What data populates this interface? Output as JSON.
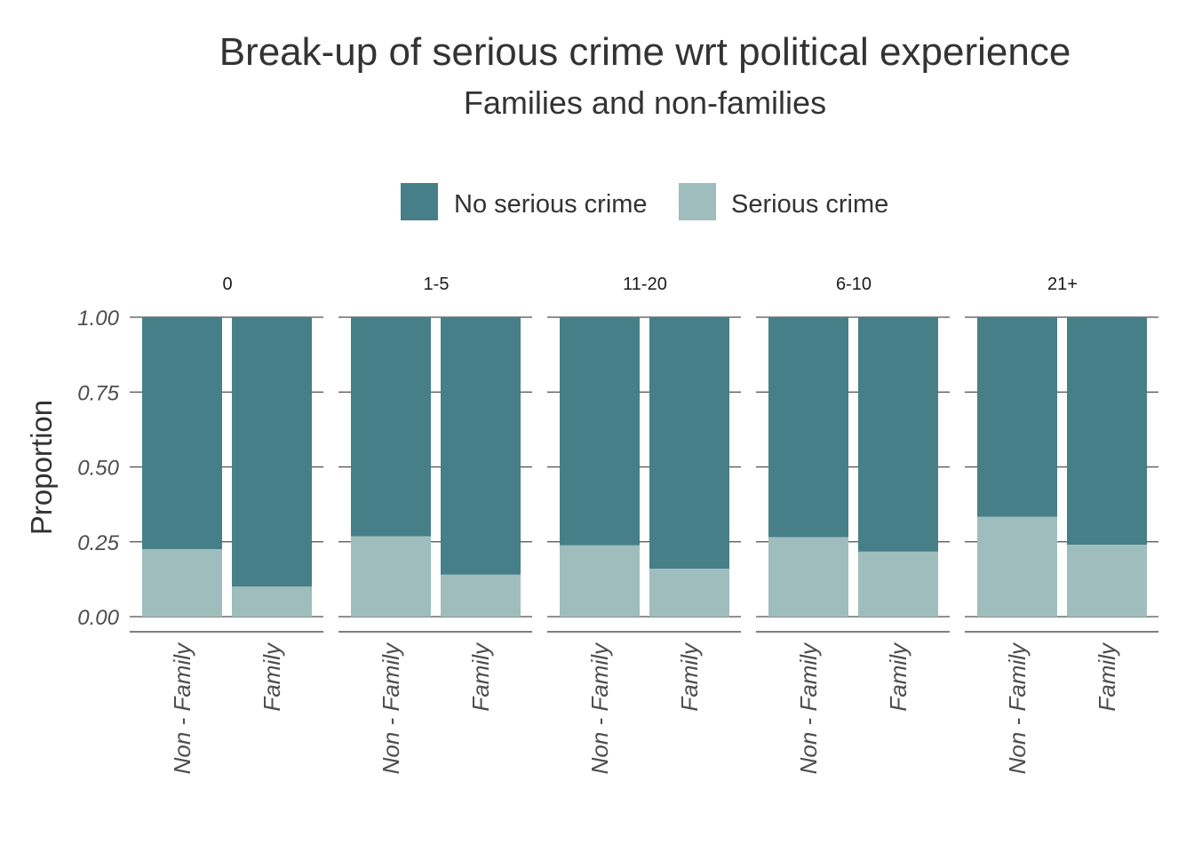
{
  "chart_data": {
    "type": "bar",
    "stacked": "proportion",
    "title": "Break-up of serious crime wrt political experience",
    "subtitle": "Families and non-families",
    "ylabel": "Proportion",
    "xlabel": "",
    "ylim": [
      0,
      1
    ],
    "yticks": [
      "0.00",
      "0.25",
      "0.50",
      "0.75",
      "1.00"
    ],
    "legend": {
      "position": "top",
      "items": [
        {
          "name": "No serious crime",
          "color": "#467f87"
        },
        {
          "name": "Serious crime",
          "color": "#9fbdbd"
        }
      ]
    },
    "categories": [
      "Non - Family",
      "Family"
    ],
    "facets": [
      {
        "label": "0",
        "serious_crime": [
          0.225,
          0.1
        ]
      },
      {
        "label": "1-5",
        "serious_crime": [
          0.268,
          0.14
        ]
      },
      {
        "label": "11-20",
        "serious_crime": [
          0.238,
          0.16
        ]
      },
      {
        "label": "6-10",
        "serious_crime": [
          0.265,
          0.217
        ]
      },
      {
        "label": "21+",
        "serious_crime": [
          0.333,
          0.24
        ]
      }
    ],
    "grid": "horizontal"
  }
}
